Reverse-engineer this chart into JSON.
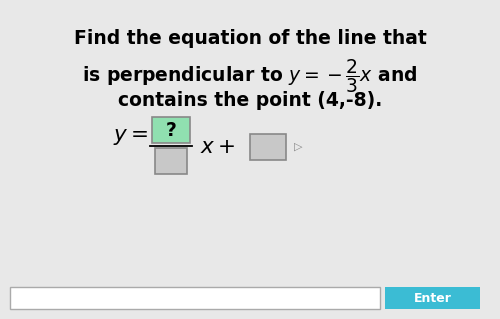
{
  "bg_color": "#e8e8e8",
  "text_line1": "Find the equation of the line that",
  "text_line2": "is perpendicular to $y = -\\dfrac{2}{3}x$ and",
  "text_line3": "contains the point (4,-8).",
  "input_bar_color": "#ffffff",
  "enter_btn_color": "#3bbcd4",
  "enter_btn_text": "Enter",
  "fontsize": 13.5,
  "box_green": "#90e0b0",
  "box_gray": "#c8c8c8",
  "box_border": "#888888"
}
